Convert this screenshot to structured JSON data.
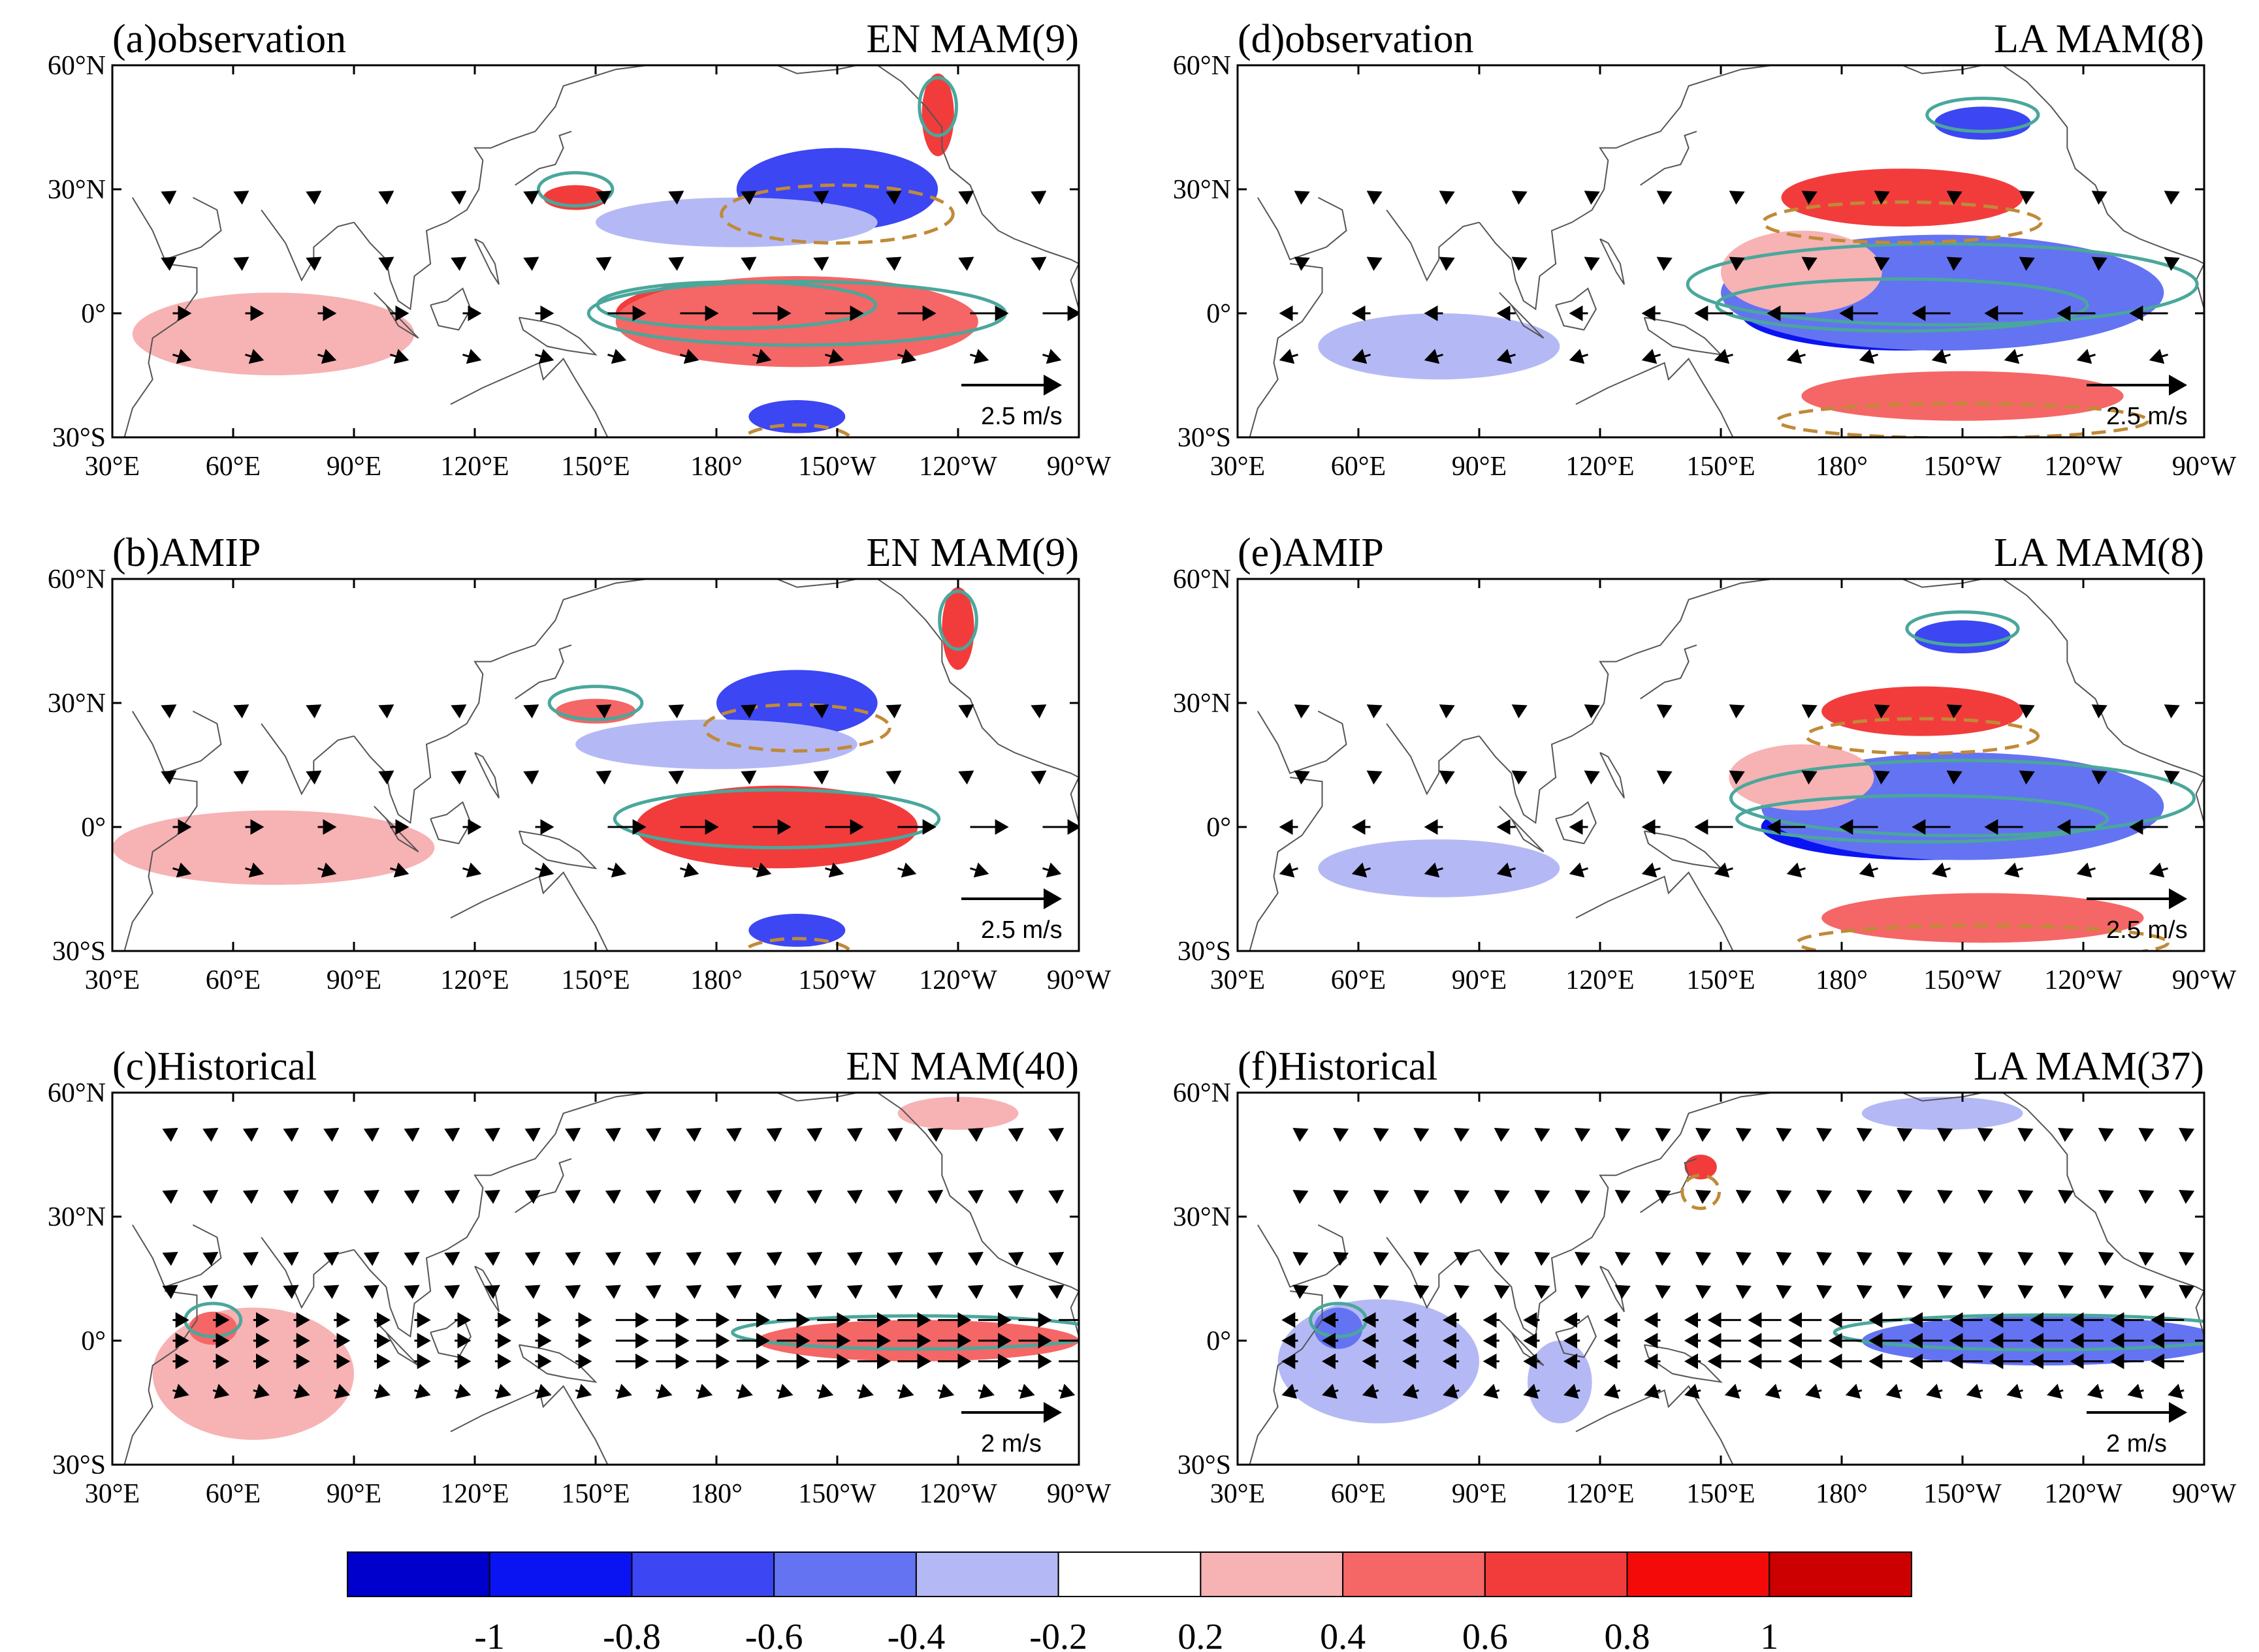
{
  "figure": {
    "colorbar": {
      "colors": [
        "#0000cc",
        "#0a14f2",
        "#3c46f2",
        "#6473f2",
        "#b4b9f5",
        "#ffffff",
        "#f7b2b4",
        "#f56666",
        "#f23c3c",
        "#f50a0a",
        "#cc0000"
      ],
      "labels": [
        "-1",
        "-0.8",
        "-0.6",
        "-0.4",
        "-0.2",
        "0.2",
        "0.4",
        "0.6",
        "0.8",
        "1"
      ]
    },
    "colors": {
      "positive_contour": "#4aa79b",
      "negative_contour": "#c08a38",
      "coast": "#555555",
      "vector": "#000000"
    },
    "lon_labels": [
      "30°E",
      "60°E",
      "90°E",
      "120°E",
      "150°E",
      "180°",
      "150°W",
      "120°W",
      "90°W"
    ],
    "lat_labels": [
      "60°N",
      "30°N",
      "0°",
      "30°S"
    ],
    "panels": [
      {
        "id": "a",
        "left": "(a)observation",
        "right": "EN MAM(9)",
        "ref_vector": "2.5 m/s",
        "shading": [
          {
            "lon": 185,
            "lat": 0,
            "rx": 30,
            "ry": 8,
            "v": 0.8
          },
          {
            "lon": 200,
            "lat": -2,
            "rx": 45,
            "ry": 11,
            "v": 0.5
          },
          {
            "lon": 70,
            "lat": -5,
            "rx": 35,
            "ry": 10,
            "v": 0.3
          },
          {
            "lon": 210,
            "lat": 30,
            "rx": 25,
            "ry": 10,
            "v": -0.6
          },
          {
            "lon": 185,
            "lat": 22,
            "rx": 35,
            "ry": 6,
            "v": -0.3
          },
          {
            "lon": 235,
            "lat": 48,
            "rx": 4,
            "ry": 10,
            "v": 0.7
          },
          {
            "lon": 200,
            "lat": -25,
            "rx": 12,
            "ry": 4,
            "v": -0.6
          },
          {
            "lon": 145,
            "lat": 28,
            "rx": 8,
            "ry": 3,
            "v": 0.7
          }
        ]
      },
      {
        "id": "b",
        "left": "(b)AMIP",
        "right": "EN MAM(9)",
        "ref_vector": "2.5 m/s",
        "shading": [
          {
            "lon": 195,
            "lat": 0,
            "rx": 35,
            "ry": 10,
            "v": 0.8
          },
          {
            "lon": 70,
            "lat": -5,
            "rx": 40,
            "ry": 9,
            "v": 0.3
          },
          {
            "lon": 200,
            "lat": 30,
            "rx": 20,
            "ry": 8,
            "v": -0.7
          },
          {
            "lon": 180,
            "lat": 20,
            "rx": 35,
            "ry": 6,
            "v": -0.3
          },
          {
            "lon": 240,
            "lat": 48,
            "rx": 4,
            "ry": 10,
            "v": 0.7
          },
          {
            "lon": 150,
            "lat": 28,
            "rx": 10,
            "ry": 3,
            "v": 0.5
          },
          {
            "lon": 200,
            "lat": -25,
            "rx": 12,
            "ry": 4,
            "v": -0.6
          }
        ]
      },
      {
        "id": "c",
        "left": "(c)Historical",
        "right": "EN MAM(40)",
        "ref_vector": "2 m/s",
        "shading": [
          {
            "lon": 65,
            "lat": -8,
            "rx": 25,
            "ry": 16,
            "v": 0.3
          },
          {
            "lon": 55,
            "lat": 3,
            "rx": 6,
            "ry": 4,
            "v": 0.6
          },
          {
            "lon": 230,
            "lat": 0,
            "rx": 40,
            "ry": 5,
            "v": 0.5
          },
          {
            "lon": 240,
            "lat": 55,
            "rx": 15,
            "ry": 4,
            "v": 0.3
          },
          {
            "lon": 110,
            "lat": 0,
            "rx": 18,
            "ry": 4,
            "v": 0.2
          }
        ]
      },
      {
        "id": "d",
        "left": "(d)observation",
        "right": "LA MAM(8)",
        "ref_vector": "2.5 m/s",
        "shading": [
          {
            "lon": 195,
            "lat": 0,
            "rx": 40,
            "ry": 9,
            "v": -0.9
          },
          {
            "lon": 205,
            "lat": 5,
            "rx": 55,
            "ry": 14,
            "v": -0.5
          },
          {
            "lon": 195,
            "lat": 28,
            "rx": 30,
            "ry": 7,
            "v": 0.7
          },
          {
            "lon": 170,
            "lat": 10,
            "rx": 20,
            "ry": 10,
            "v": 0.4
          },
          {
            "lon": 210,
            "lat": -20,
            "rx": 40,
            "ry": 6,
            "v": 0.6
          },
          {
            "lon": 80,
            "lat": -8,
            "rx": 30,
            "ry": 8,
            "v": -0.3
          },
          {
            "lon": 215,
            "lat": 46,
            "rx": 12,
            "ry": 4,
            "v": -0.6
          }
        ]
      },
      {
        "id": "e",
        "left": "(e)AMIP",
        "right": "LA MAM(8)",
        "ref_vector": "2.5 m/s",
        "shading": [
          {
            "lon": 200,
            "lat": 0,
            "rx": 40,
            "ry": 8,
            "v": -0.9
          },
          {
            "lon": 210,
            "lat": 5,
            "rx": 50,
            "ry": 13,
            "v": -0.5
          },
          {
            "lon": 200,
            "lat": 28,
            "rx": 25,
            "ry": 6,
            "v": 0.7
          },
          {
            "lon": 170,
            "lat": 12,
            "rx": 18,
            "ry": 8,
            "v": 0.4
          },
          {
            "lon": 215,
            "lat": -22,
            "rx": 40,
            "ry": 6,
            "v": 0.6
          },
          {
            "lon": 80,
            "lat": -10,
            "rx": 30,
            "ry": 7,
            "v": -0.3
          },
          {
            "lon": 210,
            "lat": 46,
            "rx": 12,
            "ry": 4,
            "v": -0.6
          }
        ]
      },
      {
        "id": "f",
        "left": "(f)Historical",
        "right": "LA MAM(37)",
        "ref_vector": "2 m/s",
        "shading": [
          {
            "lon": 65,
            "lat": -5,
            "rx": 25,
            "ry": 15,
            "v": -0.3
          },
          {
            "lon": 55,
            "lat": 3,
            "rx": 6,
            "ry": 5,
            "v": -0.5
          },
          {
            "lon": 230,
            "lat": 0,
            "rx": 45,
            "ry": 6,
            "v": -0.5
          },
          {
            "lon": 205,
            "lat": 55,
            "rx": 20,
            "ry": 4,
            "v": -0.3
          },
          {
            "lon": 145,
            "lat": 42,
            "rx": 4,
            "ry": 3,
            "v": 0.7
          },
          {
            "lon": 110,
            "lat": -10,
            "rx": 8,
            "ry": 10,
            "v": -0.2
          }
        ]
      }
    ]
  }
}
